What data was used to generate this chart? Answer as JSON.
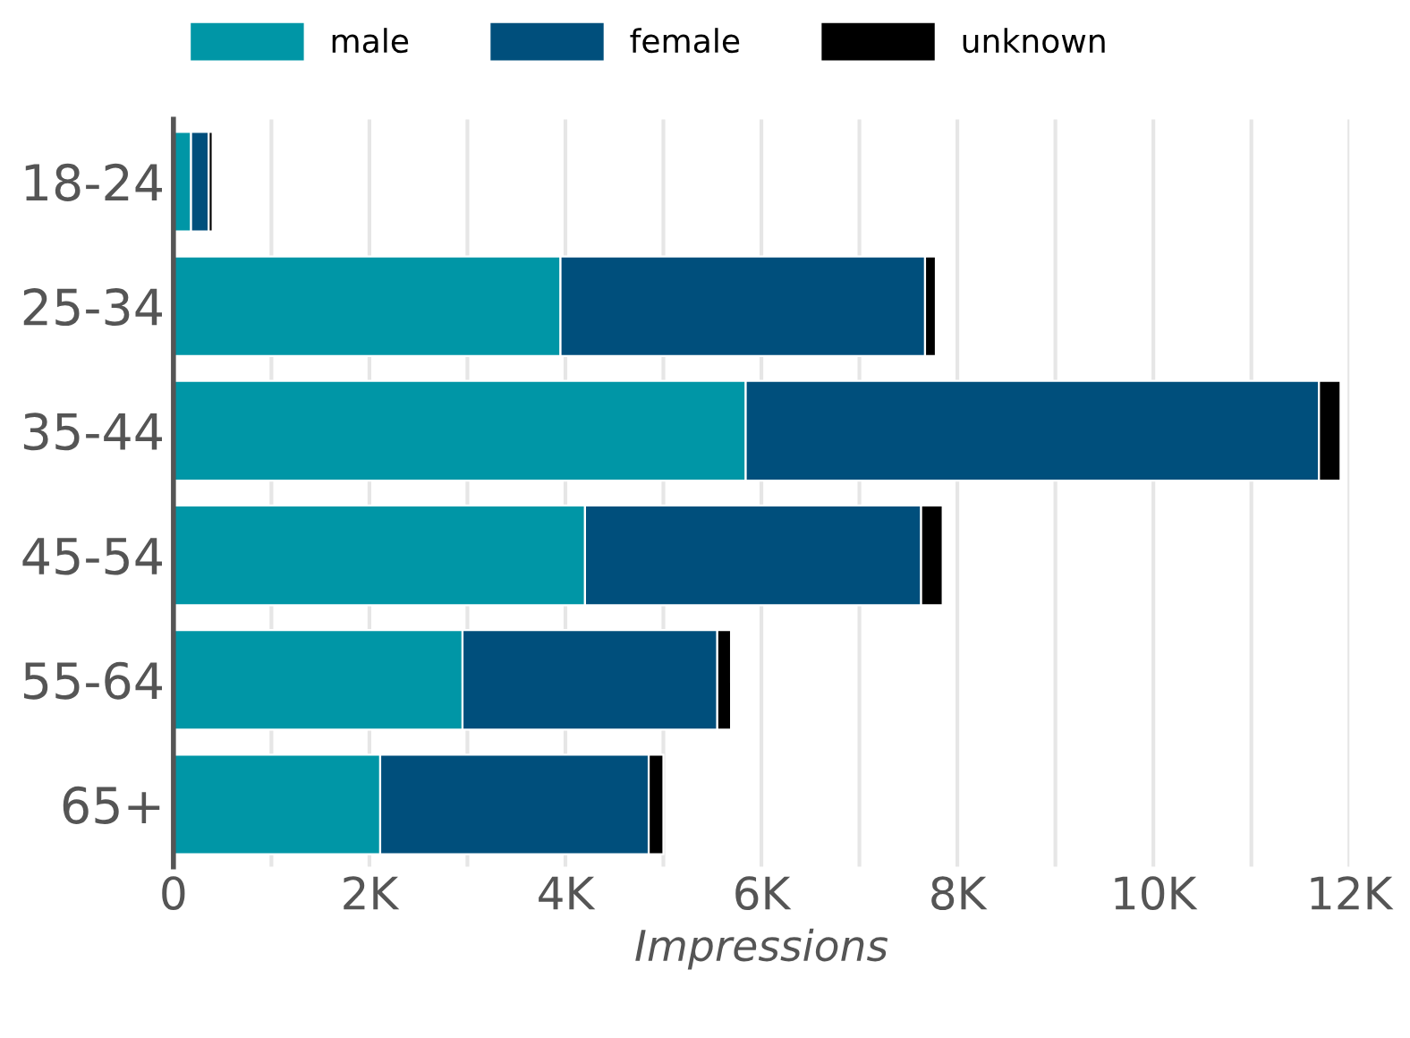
{
  "chart_data": {
    "type": "bar",
    "orientation": "horizontal",
    "stacked": true,
    "xlabel": "Impressions",
    "categories": [
      "18-24",
      "25-34",
      "35-44",
      "45-54",
      "55-64",
      "65+"
    ],
    "series": [
      {
        "name": "male",
        "color": "#0096a6",
        "values": [
          180,
          3950,
          5840,
          4200,
          2950,
          2110
        ]
      },
      {
        "name": "female",
        "color": "#004f7c",
        "values": [
          180,
          3720,
          5850,
          3430,
          2600,
          2740
        ]
      },
      {
        "name": "unknown",
        "color": "#000000",
        "values": [
          40,
          110,
          220,
          220,
          140,
          150
        ]
      }
    ],
    "xlim": [
      0,
      12000
    ],
    "xticks": [
      0,
      {
        "value": 1000,
        "label": null
      },
      {
        "value": 2000,
        "label": "2K"
      },
      {
        "value": 3000,
        "label": null
      },
      {
        "value": 4000,
        "label": "4K"
      },
      {
        "value": 5000,
        "label": null
      },
      {
        "value": 6000,
        "label": "6K"
      },
      {
        "value": 7000,
        "label": null
      },
      {
        "value": 8000,
        "label": "8K"
      },
      {
        "value": 9000,
        "label": null
      },
      {
        "value": 10000,
        "label": "10K"
      },
      {
        "value": 11000,
        "label": null
      },
      {
        "value": 12000,
        "label": "12K"
      }
    ],
    "grid": "x",
    "legend": "top left"
  }
}
